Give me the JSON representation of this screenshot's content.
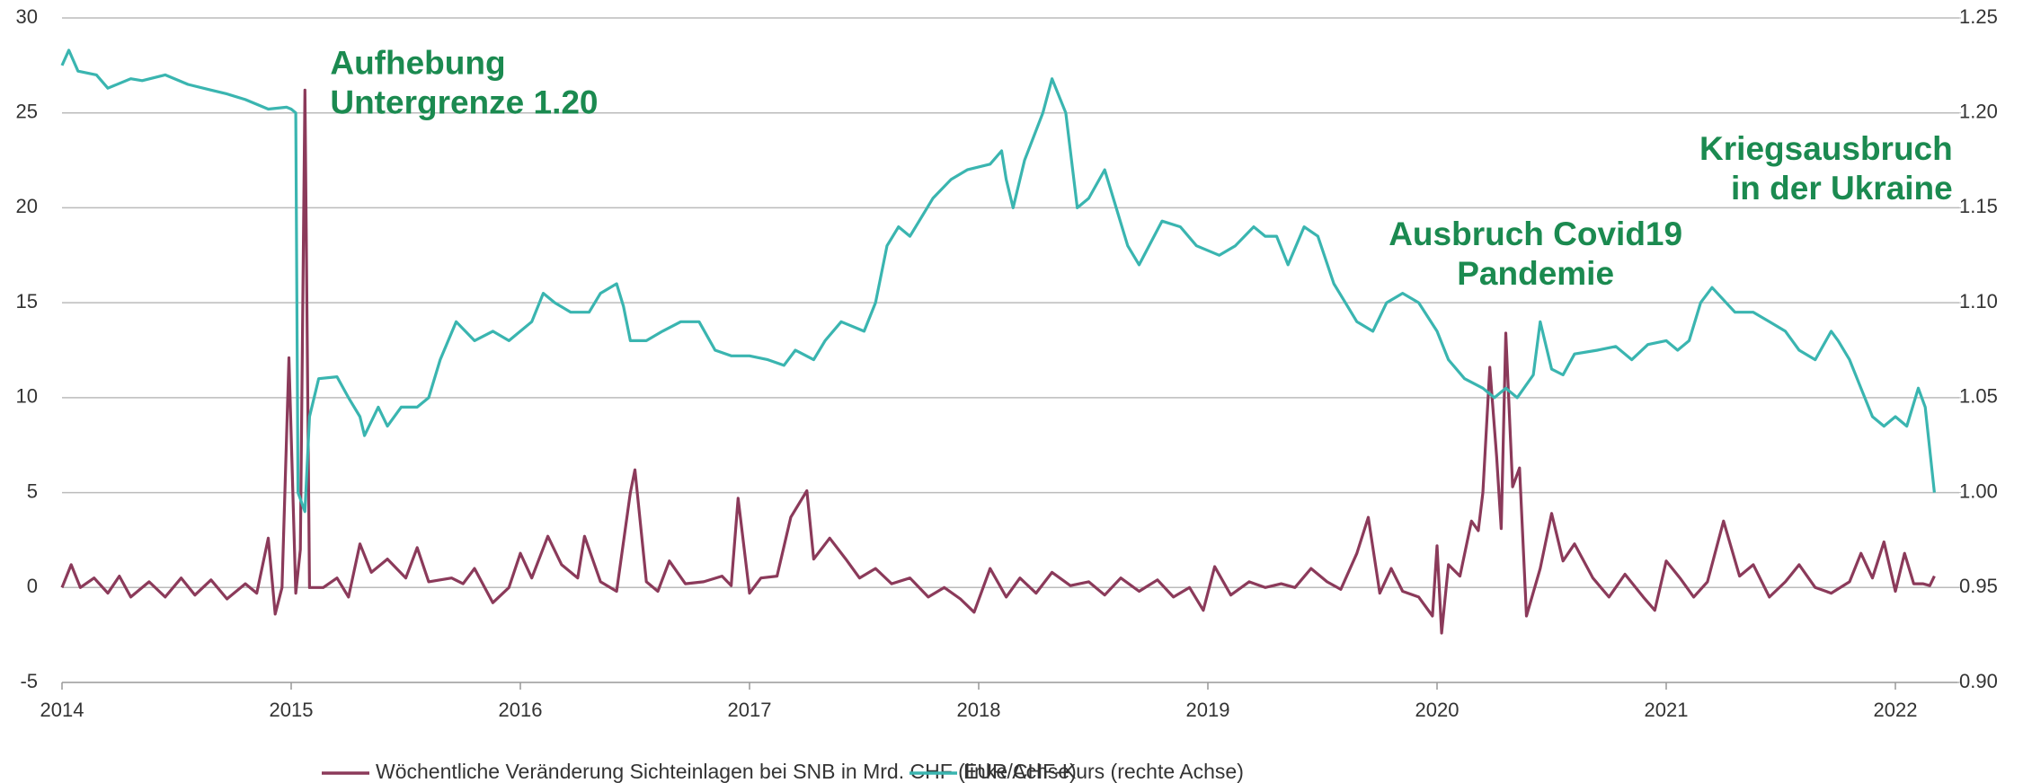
{
  "chart_data": {
    "type": "line",
    "xlim": [
      2014,
      2022.2
    ],
    "xticks": [
      2014,
      2015,
      2016,
      2017,
      2018,
      2019,
      2020,
      2021,
      2022
    ],
    "ylim": [
      -5,
      30
    ],
    "yticks": [
      -5,
      0,
      5,
      10,
      15,
      20,
      25,
      30
    ],
    "y2lim": [
      0.9,
      1.25
    ],
    "y2ticks": [
      {
        "value": 0.9,
        "label": "0.90"
      },
      0.95,
      {
        "value": 1.0,
        "label": "1.00"
      },
      1.05,
      {
        "value": 1.1,
        "label": "1.10"
      },
      1.15,
      {
        "value": 1.2,
        "label": "1.20"
      },
      1.25
    ],
    "grid": true,
    "legend": "bottom",
    "annotations": [
      {
        "lines": [
          "Aufhebung",
          "Untergrenze 1.20"
        ],
        "x": 2015.17,
        "y": 27.5,
        "align": "start"
      },
      {
        "lines": [
          "Ausbruch Covid19",
          "Pandemie"
        ],
        "x": 2020.43,
        "y": 18.5,
        "align": "middle"
      },
      {
        "lines": [
          "Kriegsausbruch",
          "in der Ukraine"
        ],
        "x": 2022.25,
        "y": 23,
        "align": "end"
      }
    ],
    "series": [
      {
        "name": "Wöchentliche Veränderung Sichteinlagen bei SNB in Mrd. CHF (linke Achse)",
        "color": "#8b3a5a",
        "axis": "y",
        "x": [
          2014.0,
          2014.04,
          2014.08,
          2014.14,
          2014.2,
          2014.25,
          2014.3,
          2014.38,
          2014.45,
          2014.52,
          2014.58,
          2014.65,
          2014.72,
          2014.8,
          2014.85,
          2014.9,
          2014.93,
          2014.96,
          2014.99,
          2015.02,
          2015.04,
          2015.06,
          2015.08,
          2015.14,
          2015.2,
          2015.25,
          2015.3,
          2015.35,
          2015.42,
          2015.5,
          2015.55,
          2015.6,
          2015.7,
          2015.75,
          2015.8,
          2015.88,
          2015.95,
          2016.0,
          2016.05,
          2016.12,
          2016.18,
          2016.25,
          2016.28,
          2016.35,
          2016.42,
          2016.48,
          2016.5,
          2016.55,
          2016.6,
          2016.65,
          2016.72,
          2016.8,
          2016.88,
          2016.92,
          2016.95,
          2017.0,
          2017.05,
          2017.12,
          2017.18,
          2017.25,
          2017.28,
          2017.35,
          2017.42,
          2017.48,
          2017.55,
          2017.62,
          2017.7,
          2017.78,
          2017.85,
          2017.92,
          2017.98,
          2018.05,
          2018.12,
          2018.18,
          2018.25,
          2018.32,
          2018.4,
          2018.48,
          2018.55,
          2018.62,
          2018.7,
          2018.78,
          2018.85,
          2018.92,
          2018.98,
          2019.03,
          2019.1,
          2019.18,
          2019.25,
          2019.32,
          2019.38,
          2019.45,
          2019.52,
          2019.58,
          2019.65,
          2019.7,
          2019.75,
          2019.8,
          2019.85,
          2019.92,
          2019.98,
          2020.0,
          2020.02,
          2020.05,
          2020.1,
          2020.15,
          2020.18,
          2020.2,
          2020.23,
          2020.26,
          2020.28,
          2020.3,
          2020.33,
          2020.36,
          2020.39,
          2020.45,
          2020.5,
          2020.55,
          2020.6,
          2020.68,
          2020.75,
          2020.82,
          2020.9,
          2020.95,
          2021.0,
          2021.06,
          2021.12,
          2021.18,
          2021.25,
          2021.32,
          2021.38,
          2021.45,
          2021.52,
          2021.58,
          2021.65,
          2021.72,
          2021.8,
          2021.85,
          2021.9,
          2021.95,
          2022.0,
          2022.04,
          2022.08,
          2022.12,
          2022.15,
          2022.17
        ],
        "values": [
          0,
          1.2,
          0,
          0.5,
          -0.3,
          0.6,
          -0.5,
          0.3,
          -0.5,
          0.5,
          -0.4,
          0.4,
          -0.6,
          0.2,
          -0.3,
          2.6,
          -1.4,
          0,
          12.1,
          -0.3,
          2,
          26.2,
          0,
          0,
          0.5,
          -0.5,
          2.3,
          0.8,
          1.5,
          0.5,
          2.1,
          0.3,
          0.5,
          0.2,
          1,
          -0.8,
          0,
          1.8,
          0.5,
          2.7,
          1.2,
          0.5,
          2.7,
          0.3,
          -0.2,
          5,
          6.2,
          0.3,
          -0.2,
          1.4,
          0.2,
          0.3,
          0.6,
          0.1,
          4.7,
          -0.3,
          0.5,
          0.6,
          3.7,
          5.1,
          1.5,
          2.6,
          1.5,
          0.5,
          1,
          0.2,
          0.5,
          -0.5,
          0,
          -0.6,
          -1.3,
          1,
          -0.5,
          0.5,
          -0.3,
          0.8,
          0.1,
          0.3,
          -0.4,
          0.5,
          -0.2,
          0.4,
          -0.5,
          0,
          -1.2,
          1.1,
          -0.4,
          0.3,
          0,
          0.2,
          0,
          1,
          0.3,
          -0.1,
          1.8,
          3.7,
          -0.3,
          1,
          -0.2,
          -0.5,
          -1.5,
          2.2,
          -2.4,
          1.2,
          0.6,
          3.5,
          3,
          5,
          11.6,
          6.9,
          3.1,
          13.4,
          5.3,
          6.3,
          -1.5,
          1,
          3.9,
          1.4,
          2.3,
          0.5,
          -0.5,
          0.7,
          -0.5,
          -1.2,
          1.4,
          0.5,
          -0.5,
          0.3,
          3.5,
          0.6,
          1.2,
          -0.5,
          0.3,
          1.2,
          0,
          -0.3,
          0.3,
          1.8,
          0.5,
          2.4,
          -0.2,
          1.8,
          0.2,
          0.2,
          0.1,
          0.6
        ]
      },
      {
        "name": "EUR/CHF-Kurs (rechte Achse)",
        "color": "#3ab5b0",
        "axis": "y2",
        "x": [
          2014.0,
          2014.03,
          2014.07,
          2014.15,
          2014.2,
          2014.3,
          2014.35,
          2014.45,
          2014.55,
          2014.65,
          2014.72,
          2014.8,
          2014.9,
          2014.98,
          2015.0,
          2015.02,
          2015.03,
          2015.06,
          2015.08,
          2015.12,
          2015.2,
          2015.25,
          2015.3,
          2015.32,
          2015.38,
          2015.42,
          2015.48,
          2015.55,
          2015.6,
          2015.65,
          2015.72,
          2015.8,
          2015.88,
          2015.95,
          2016.05,
          2016.1,
          2016.15,
          2016.22,
          2016.3,
          2016.35,
          2016.42,
          2016.45,
          2016.48,
          2016.55,
          2016.62,
          2016.7,
          2016.78,
          2016.85,
          2016.92,
          2017.0,
          2017.08,
          2017.15,
          2017.2,
          2017.28,
          2017.33,
          2017.4,
          2017.5,
          2017.55,
          2017.6,
          2017.65,
          2017.7,
          2017.8,
          2017.88,
          2017.95,
          2018.05,
          2018.1,
          2018.12,
          2018.15,
          2018.2,
          2018.28,
          2018.32,
          2018.38,
          2018.43,
          2018.48,
          2018.55,
          2018.6,
          2018.65,
          2018.7,
          2018.8,
          2018.88,
          2018.95,
          2019.05,
          2019.12,
          2019.2,
          2019.25,
          2019.3,
          2019.35,
          2019.42,
          2019.48,
          2019.55,
          2019.6,
          2019.65,
          2019.72,
          2019.78,
          2019.85,
          2019.92,
          2020.0,
          2020.05,
          2020.12,
          2020.2,
          2020.25,
          2020.3,
          2020.35,
          2020.42,
          2020.45,
          2020.5,
          2020.55,
          2020.6,
          2020.7,
          2020.78,
          2020.85,
          2020.92,
          2021.0,
          2021.05,
          2021.1,
          2021.15,
          2021.2,
          2021.3,
          2021.38,
          2021.45,
          2021.52,
          2021.58,
          2021.65,
          2021.72,
          2021.75,
          2021.8,
          2021.85,
          2021.9,
          2021.95,
          2022.0,
          2022.05,
          2022.1,
          2022.13,
          2022.17
        ],
        "values": [
          1.225,
          1.233,
          1.222,
          1.22,
          1.213,
          1.218,
          1.217,
          1.22,
          1.215,
          1.212,
          1.21,
          1.207,
          1.202,
          1.203,
          1.202,
          1.2,
          1.0,
          0.99,
          1.04,
          1.06,
          1.061,
          1.05,
          1.04,
          1.03,
          1.045,
          1.035,
          1.045,
          1.045,
          1.05,
          1.07,
          1.09,
          1.08,
          1.085,
          1.08,
          1.09,
          1.105,
          1.1,
          1.095,
          1.095,
          1.105,
          1.11,
          1.098,
          1.08,
          1.08,
          1.085,
          1.09,
          1.09,
          1.075,
          1.072,
          1.072,
          1.07,
          1.067,
          1.075,
          1.07,
          1.08,
          1.09,
          1.085,
          1.1,
          1.13,
          1.14,
          1.135,
          1.155,
          1.165,
          1.17,
          1.173,
          1.18,
          1.165,
          1.15,
          1.175,
          1.2,
          1.218,
          1.2,
          1.15,
          1.155,
          1.17,
          1.15,
          1.13,
          1.12,
          1.143,
          1.14,
          1.13,
          1.125,
          1.13,
          1.14,
          1.135,
          1.135,
          1.12,
          1.14,
          1.135,
          1.11,
          1.1,
          1.09,
          1.085,
          1.1,
          1.105,
          1.1,
          1.085,
          1.07,
          1.06,
          1.055,
          1.05,
          1.055,
          1.05,
          1.062,
          1.09,
          1.065,
          1.062,
          1.073,
          1.075,
          1.077,
          1.07,
          1.078,
          1.08,
          1.075,
          1.08,
          1.1,
          1.108,
          1.095,
          1.095,
          1.09,
          1.085,
          1.075,
          1.07,
          1.085,
          1.08,
          1.07,
          1.055,
          1.04,
          1.035,
          1.04,
          1.035,
          1.055,
          1.045,
          1.0
        ]
      }
    ]
  }
}
